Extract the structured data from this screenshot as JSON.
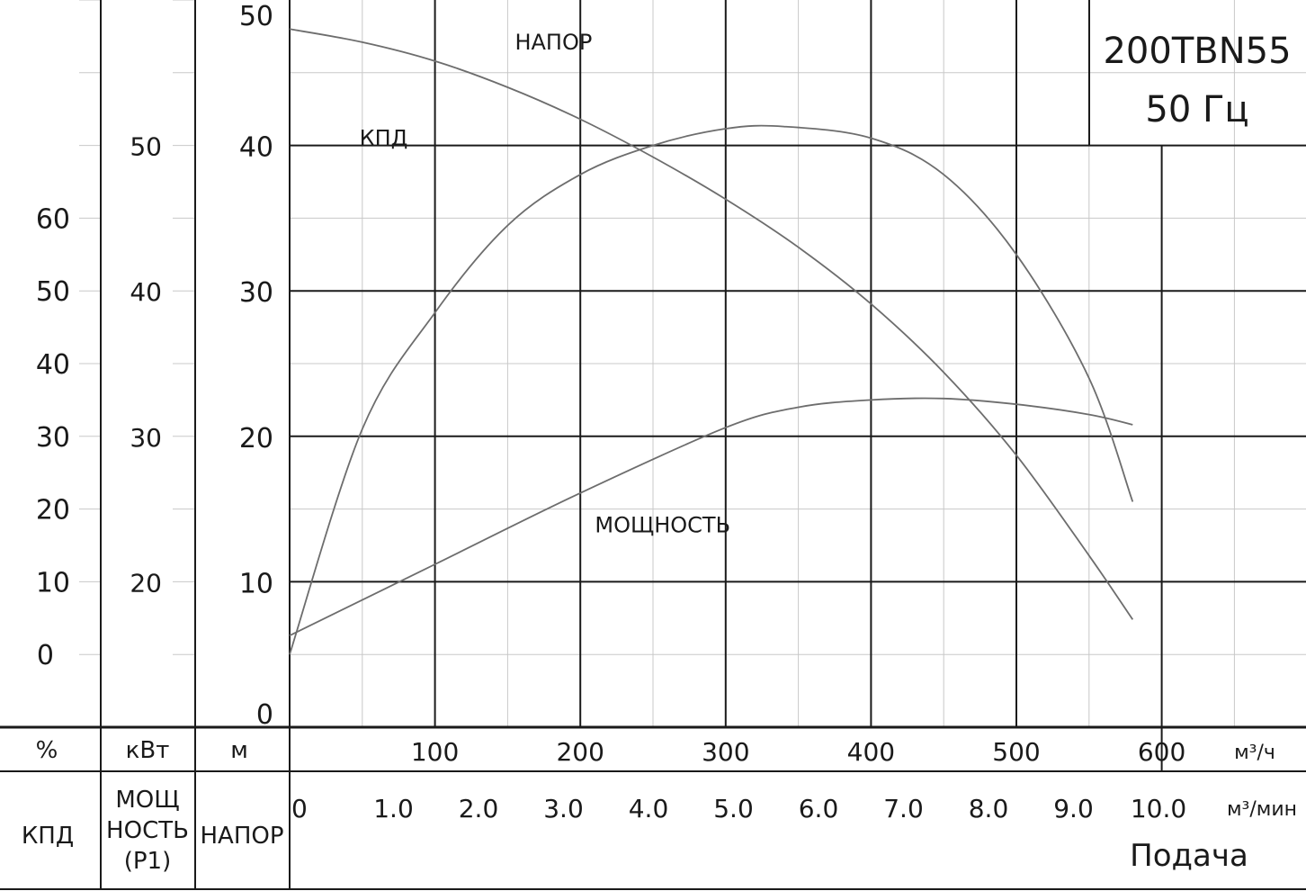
{
  "chart_data": {
    "type": "line",
    "title": [
      "200TBN55",
      "50 Гц"
    ],
    "x_q": {
      "unit": "м³/ч",
      "range": [
        0,
        700
      ],
      "ticks": [
        "100",
        "200",
        "300",
        "400",
        "500",
        "600"
      ],
      "tick_values": [
        100,
        200,
        300,
        400,
        500,
        600
      ]
    },
    "x_q_min": {
      "unit": "м³/мин",
      "ticks": [
        "0",
        "1.0",
        "2.0",
        "3.0",
        "4.0",
        "5.0",
        "6.0",
        "7.0",
        "8.0",
        "9.0",
        "10.0"
      ],
      "tick_values": [
        0,
        1,
        2,
        3,
        4,
        5,
        6,
        7,
        8,
        9,
        10
      ]
    },
    "xlabel": "Подача",
    "axes": {
      "head": {
        "unit": "м",
        "name": "НАПОР",
        "range": [
          0,
          50
        ],
        "ticks": [
          "0",
          "10",
          "20",
          "30",
          "40",
          "50"
        ],
        "tick_values": [
          0,
          10,
          20,
          30,
          40,
          50
        ]
      },
      "power": {
        "unit": "кВт",
        "name": "МОЩ НОСТЬ (P1)",
        "name_lines": [
          "МОЩ",
          "НОСТЬ",
          "(P1)"
        ],
        "range": [
          10,
          60
        ],
        "ticks": [
          "20",
          "30",
          "40",
          "50"
        ],
        "tick_values": [
          20,
          30,
          40,
          50
        ]
      },
      "efficiency": {
        "unit": "%",
        "name": "КПД",
        "range": [
          -10,
          90
        ],
        "ticks": [
          "0",
          "10",
          "20",
          "30",
          "40",
          "50",
          "60"
        ],
        "tick_values": [
          0,
          10,
          20,
          30,
          40,
          50,
          60
        ]
      }
    },
    "series": [
      {
        "name": "НАПОР",
        "axis": "head",
        "x": [
          0,
          50,
          100,
          150,
          200,
          250,
          300,
          350,
          400,
          450,
          500,
          550,
          580
        ],
        "y": [
          48.0,
          47.1,
          45.8,
          44.0,
          41.8,
          39.2,
          36.3,
          33.0,
          29.1,
          24.4,
          18.7,
          11.8,
          7.4
        ]
      },
      {
        "name": "КПД",
        "axis": "efficiency",
        "x": [
          0,
          50,
          100,
          150,
          200,
          250,
          300,
          340,
          400,
          450,
          500,
          550,
          580
        ],
        "y": [
          0.0,
          31.0,
          47.0,
          59.0,
          66.0,
          70.0,
          72.3,
          72.6,
          71.0,
          66.0,
          55.0,
          38.0,
          21.0
        ]
      },
      {
        "name": "МОЩНОСТЬ",
        "axis": "power",
        "x": [
          0,
          100,
          200,
          300,
          350,
          400,
          450,
          500,
          550,
          580
        ],
        "y": [
          16.3,
          21.2,
          26.1,
          30.6,
          32.0,
          32.5,
          32.6,
          32.2,
          31.5,
          30.8
        ]
      }
    ],
    "label_anchors": [
      {
        "text": "НАПОР",
        "x": 155,
        "y": 46.6
      },
      {
        "text": "КПД",
        "x": 48,
        "y": 40
      },
      {
        "text": "МОЩНОСТЬ",
        "x": 210,
        "y": 13.4
      }
    ],
    "grid": true,
    "legend": "none"
  },
  "colors": {
    "curve": "#6d6d6d",
    "grid_major": "#1a1a1a",
    "grid_minor": "#c8c8c8",
    "text": "#1a1a1a",
    "background": "#ffffff"
  }
}
